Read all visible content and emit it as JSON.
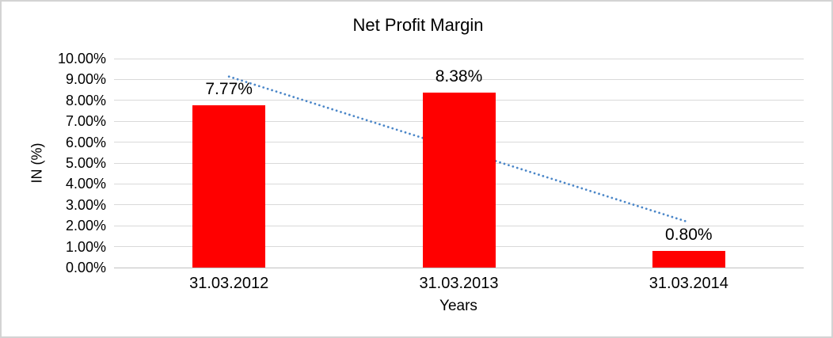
{
  "chart_data": {
    "type": "bar",
    "title": "Net Profit Margin",
    "xlabel": "Years",
    "ylabel": "IN (%)",
    "categories": [
      "31.03.2012",
      "31.03.2013",
      "31.03.2014"
    ],
    "values": [
      7.77,
      8.38,
      0.8
    ],
    "value_labels": [
      "7.77%",
      "8.38%",
      "0.80%"
    ],
    "ylim": [
      0,
      10
    ],
    "yticks": [
      "0.00%",
      "1.00%",
      "2.00%",
      "3.00%",
      "4.00%",
      "5.00%",
      "6.00%",
      "7.00%",
      "8.00%",
      "9.00%",
      "10.00%"
    ],
    "grid": true,
    "legend_position": "none",
    "bar_color": "#ff0000",
    "gridline_color": "#d9d9d9",
    "trendline": {
      "type": "linear",
      "style": "dotted",
      "color": "#4a86c8",
      "start_value": 9.14,
      "end_value": 2.17
    }
  }
}
